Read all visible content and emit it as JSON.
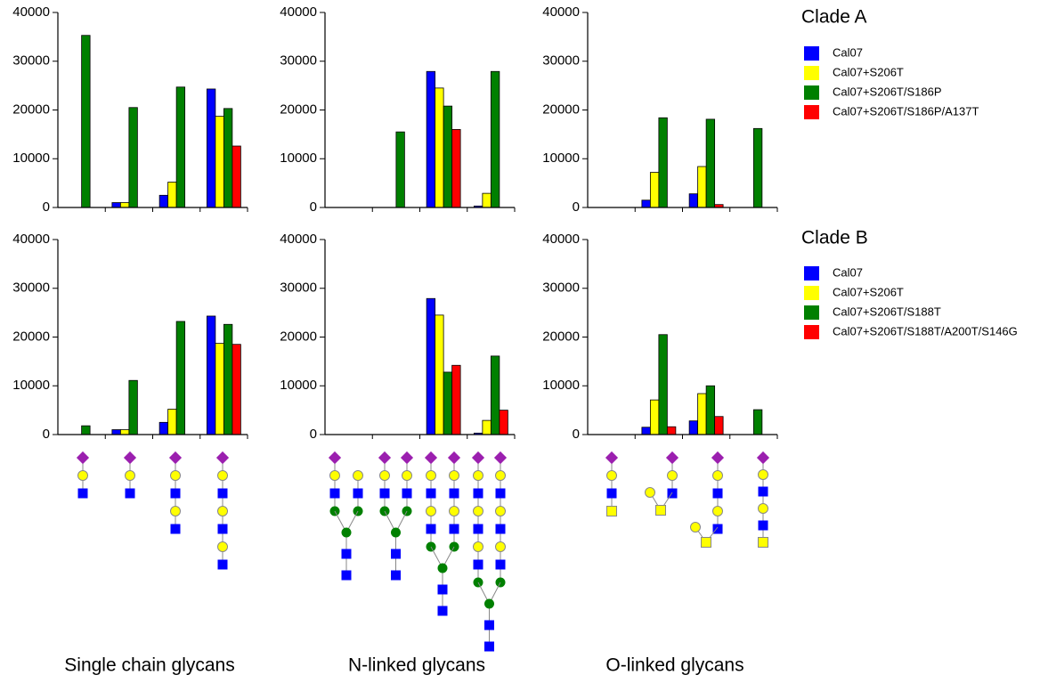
{
  "chart_data": [
    {
      "type": "bar",
      "categories": [
        null,
        null,
        null,
        null
      ],
      "ylim": [
        0,
        40000
      ],
      "yticks": [
        0,
        10000,
        20000,
        30000,
        40000
      ],
      "series": [
        {
          "name": "Cal07",
          "color": "#0000ff",
          "values": [
            0,
            1000,
            2500,
            24300
          ]
        },
        {
          "name": "Cal07+S206T",
          "color": "#ffff00",
          "values": [
            0,
            1000,
            5200,
            18700
          ]
        },
        {
          "name": "Cal07+S206T/S186P",
          "color": "#008000",
          "values": [
            35300,
            20500,
            24700,
            20300
          ]
        },
        {
          "name": "Cal07+S206T/S186P/A137T",
          "color": "#ff0000",
          "values": [
            0,
            0,
            0,
            12600
          ]
        }
      ]
    },
    {
      "type": "bar",
      "categories": [
        null,
        null,
        null,
        null
      ],
      "ylim": [
        0,
        40000
      ],
      "yticks": [
        0,
        10000,
        20000,
        30000,
        40000
      ],
      "series": [
        {
          "color": "#0000ff",
          "values": [
            0,
            0,
            27900,
            300
          ]
        },
        {
          "color": "#ffff00",
          "values": [
            0,
            0,
            24500,
            2900
          ]
        },
        {
          "color": "#008000",
          "values": [
            0,
            15500,
            20800,
            27900
          ]
        },
        {
          "color": "#ff0000",
          "values": [
            0,
            0,
            16000,
            0
          ]
        }
      ]
    },
    {
      "type": "bar",
      "categories": [
        null,
        null,
        null,
        null
      ],
      "ylim": [
        0,
        40000
      ],
      "yticks": [
        0,
        10000,
        20000,
        30000,
        40000
      ],
      "series": [
        {
          "color": "#0000ff",
          "values": [
            0,
            1500,
            2800,
            0
          ]
        },
        {
          "color": "#ffff00",
          "values": [
            0,
            7200,
            8400,
            0
          ]
        },
        {
          "color": "#008000",
          "values": [
            0,
            18400,
            18100,
            16200
          ]
        },
        {
          "color": "#ff0000",
          "values": [
            0,
            0,
            600,
            0
          ]
        }
      ]
    },
    {
      "type": "bar",
      "categories": [
        null,
        null,
        null,
        null
      ],
      "ylim": [
        0,
        40000
      ],
      "yticks": [
        0,
        10000,
        20000,
        30000,
        40000
      ],
      "series": [
        {
          "name": "Cal07",
          "color": "#0000ff",
          "values": [
            0,
            1000,
            2500,
            24300
          ]
        },
        {
          "name": "Cal07+S206T",
          "color": "#ffff00",
          "values": [
            0,
            1000,
            5200,
            18700
          ]
        },
        {
          "name": "Cal07+S206T/S188T",
          "color": "#008000",
          "values": [
            1800,
            11100,
            23200,
            22600
          ]
        },
        {
          "name": "Cal07+S206T/S188T/A200T/S146G",
          "color": "#ff0000",
          "values": [
            0,
            0,
            0,
            18500
          ]
        }
      ]
    },
    {
      "type": "bar",
      "categories": [
        null,
        null,
        null,
        null
      ],
      "ylim": [
        0,
        40000
      ],
      "yticks": [
        0,
        10000,
        20000,
        30000,
        40000
      ],
      "series": [
        {
          "color": "#0000ff",
          "values": [
            0,
            0,
            27900,
            300
          ]
        },
        {
          "color": "#ffff00",
          "values": [
            0,
            0,
            24500,
            2900
          ]
        },
        {
          "color": "#008000",
          "values": [
            0,
            0,
            12800,
            16100
          ]
        },
        {
          "color": "#ff0000",
          "values": [
            0,
            0,
            14200,
            5000
          ]
        }
      ]
    },
    {
      "type": "bar",
      "categories": [
        null,
        null,
        null,
        null
      ],
      "ylim": [
        0,
        40000
      ],
      "yticks": [
        0,
        10000,
        20000,
        30000,
        40000
      ],
      "series": [
        {
          "color": "#0000ff",
          "values": [
            0,
            1500,
            2800,
            0
          ]
        },
        {
          "color": "#ffff00",
          "values": [
            0,
            7100,
            8400,
            0
          ]
        },
        {
          "color": "#008000",
          "values": [
            0,
            20500,
            10000,
            5100
          ]
        },
        {
          "color": "#ff0000",
          "values": [
            0,
            1600,
            3700,
            0
          ]
        }
      ]
    }
  ],
  "row_titles": [
    "Clade A",
    "Clade B"
  ],
  "column_titles": [
    "Single chain glycans",
    "N-linked glycans",
    "O-linked glycans"
  ]
}
